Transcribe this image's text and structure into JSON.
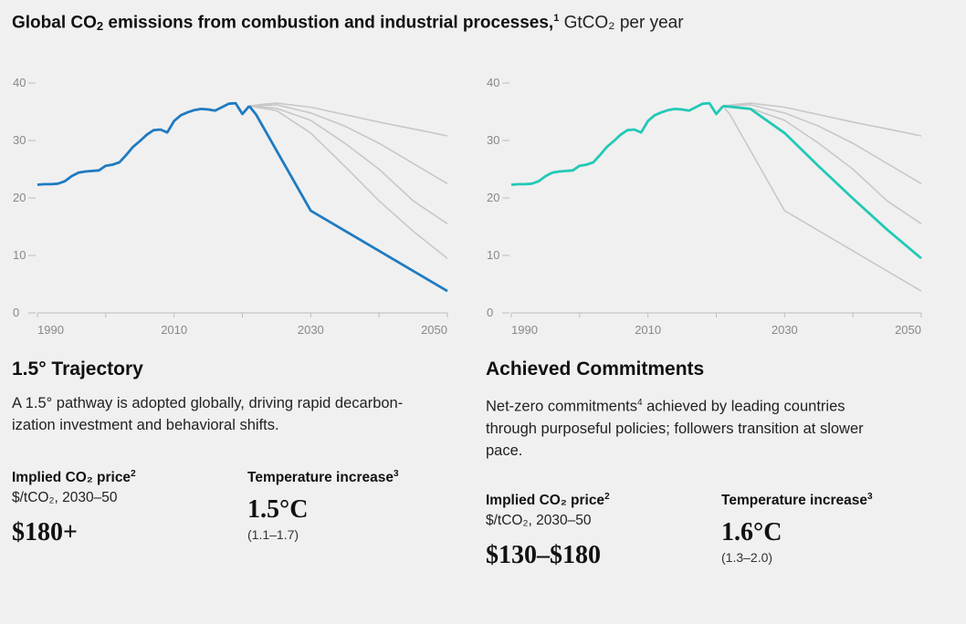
{
  "header": {
    "title_main": "Global CO",
    "title_sub": "2",
    "title_rest": " emissions from combustion and industrial processes,",
    "title_footnote": "1",
    "title_unit": " GtCO₂ per year"
  },
  "colors": {
    "background": "#f0f0f0",
    "gray_scenario": "#c8c8c8",
    "axis": "#bdbdbd",
    "highlight_left": "#1f7bc1",
    "highlight_right": "#22c9b6"
  },
  "panels": [
    {
      "title": "1.5° Trajectory",
      "description": "A 1.5° pathway is adopted globally, driving rapid decarbon-\nization investment and behavioral shifts.",
      "price_label": "Implied CO₂ price",
      "price_footnote": "2",
      "price_units": "$/tCO₂, 2030–50",
      "price_value": "$180+",
      "temp_label": "Temperature increase",
      "temp_footnote": "3",
      "temp_value": "1.5°C",
      "temp_range": "(1.1–1.7)"
    },
    {
      "title": "Achieved Commitments",
      "description_a": "Net-zero commitments",
      "description_footnote": "4",
      "description_b": " achieved by leading countries through purposeful policies; followers transition at slower pace.",
      "price_label": "Implied CO₂ price",
      "price_footnote": "2",
      "price_units": "$/tCO₂, 2030–50",
      "price_value": "$130–$180",
      "temp_label": "Temperature increase",
      "temp_footnote": "3",
      "temp_value": "1.6°C",
      "temp_range": "(1.3–2.0)"
    }
  ],
  "chart_data": [
    {
      "type": "line",
      "title": "1.5° Trajectory",
      "xlim": [
        1990,
        2050
      ],
      "ylim": [
        0,
        40
      ],
      "x_ticks": [
        1990,
        2010,
        2030,
        2050
      ],
      "y_ticks": [
        0,
        10,
        20,
        30,
        40
      ],
      "grid": false,
      "highlight": "1.5° Trajectory",
      "historical": {
        "x": [
          1990,
          1991,
          1992,
          1993,
          1994,
          1995,
          1996,
          1997,
          1998,
          1999,
          2000,
          2001,
          2002,
          2003,
          2004,
          2005,
          2006,
          2007,
          2008,
          2009,
          2010,
          2011,
          2012,
          2013,
          2014,
          2015,
          2016,
          2017,
          2018,
          2019,
          2020,
          2021
        ],
        "y": [
          22.3,
          22.4,
          22.4,
          22.5,
          22.9,
          23.8,
          24.4,
          24.6,
          24.7,
          24.8,
          25.6,
          25.8,
          26.2,
          27.5,
          28.9,
          29.9,
          31.0,
          31.8,
          31.9,
          31.4,
          33.4,
          34.4,
          34.9,
          35.3,
          35.5,
          35.4,
          35.2,
          35.8,
          36.4,
          36.5,
          34.6,
          36.0
        ]
      },
      "series": [
        {
          "name": "1.5° Trajectory",
          "x": [
            2021,
            2022,
            2030,
            2050
          ],
          "y": [
            36.0,
            34.5,
            17.8,
            3.8
          ]
        },
        {
          "x": [
            2021,
            2023,
            2025,
            2030,
            2040,
            2048,
            2050
          ],
          "y": [
            36.0,
            36.3,
            36.5,
            35.8,
            33.2,
            31.3,
            30.8
          ]
        },
        {
          "x": [
            2021,
            2025,
            2030,
            2035,
            2040,
            2045,
            2050
          ],
          "y": [
            36.0,
            36.2,
            34.8,
            32.5,
            29.5,
            26.0,
            22.5
          ]
        },
        {
          "x": [
            2021,
            2025,
            2030,
            2035,
            2040,
            2045,
            2050
          ],
          "y": [
            36.0,
            35.6,
            33.5,
            29.5,
            25.0,
            19.5,
            15.5
          ]
        },
        {
          "x": [
            2021,
            2025,
            2030,
            2035,
            2040,
            2045,
            2050
          ],
          "y": [
            36.0,
            35.2,
            31.3,
            25.5,
            19.5,
            14.2,
            9.5
          ]
        }
      ]
    },
    {
      "type": "line",
      "title": "Achieved Commitments",
      "xlim": [
        1990,
        2050
      ],
      "ylim": [
        0,
        40
      ],
      "x_ticks": [
        1990,
        2010,
        2030,
        2050
      ],
      "y_ticks": [
        0,
        10,
        20,
        30,
        40
      ],
      "grid": false,
      "highlight": "Achieved Commitments",
      "historical": {
        "x": [
          1990,
          1991,
          1992,
          1993,
          1994,
          1995,
          1996,
          1997,
          1998,
          1999,
          2000,
          2001,
          2002,
          2003,
          2004,
          2005,
          2006,
          2007,
          2008,
          2009,
          2010,
          2011,
          2012,
          2013,
          2014,
          2015,
          2016,
          2017,
          2018,
          2019,
          2020,
          2021
        ],
        "y": [
          22.3,
          22.4,
          22.4,
          22.5,
          22.9,
          23.8,
          24.4,
          24.6,
          24.7,
          24.8,
          25.6,
          25.8,
          26.2,
          27.5,
          28.9,
          29.9,
          31.0,
          31.8,
          31.9,
          31.4,
          33.4,
          34.4,
          34.9,
          35.3,
          35.5,
          35.4,
          35.2,
          35.8,
          36.4,
          36.5,
          34.6,
          36.0
        ]
      },
      "series": [
        {
          "name": "Achieved Commitments",
          "x": [
            2021,
            2025,
            2030,
            2035,
            2040,
            2045,
            2050
          ],
          "y": [
            36.0,
            35.5,
            31.3,
            25.5,
            19.9,
            14.5,
            9.5
          ]
        },
        {
          "x": [
            2021,
            2023,
            2025,
            2030,
            2040,
            2048,
            2050
          ],
          "y": [
            36.0,
            36.3,
            36.5,
            35.8,
            33.2,
            31.3,
            30.8
          ]
        },
        {
          "x": [
            2021,
            2025,
            2030,
            2035,
            2040,
            2045,
            2050
          ],
          "y": [
            36.0,
            36.2,
            34.8,
            32.5,
            29.5,
            26.0,
            22.5
          ]
        },
        {
          "x": [
            2021,
            2025,
            2030,
            2035,
            2040,
            2045,
            2050
          ],
          "y": [
            36.0,
            35.6,
            33.5,
            29.5,
            25.0,
            19.5,
            15.5
          ]
        },
        {
          "x": [
            2021,
            2022,
            2030,
            2050
          ],
          "y": [
            36.0,
            34.5,
            17.8,
            3.8
          ]
        }
      ]
    }
  ]
}
